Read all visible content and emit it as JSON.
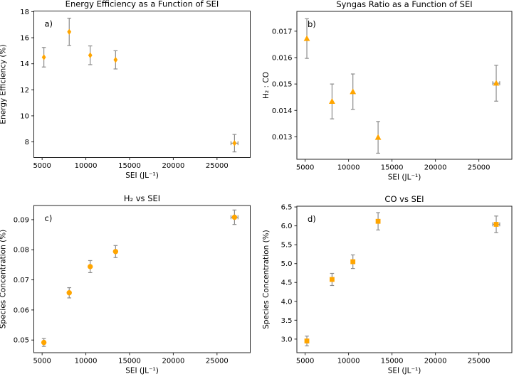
{
  "style": {
    "background": "#ffffff",
    "marker_color": "#FFA500",
    "error_bar_color": "#8c8c8c",
    "axis_color": "#262626",
    "text_color": "#000000"
  },
  "chart_data": [
    {
      "id": "a",
      "type": "scatter",
      "title": "Energy Efficiency as a Function of SEI",
      "annotation": "a)",
      "xlabel": "SEI (JL⁻¹)",
      "ylabel": "Energy Efficiency (%)",
      "marker": "diamond",
      "grid": false,
      "legend": "none",
      "xlim": [
        4050,
        28800
      ],
      "ylim": [
        6.8,
        18.05
      ],
      "xticks": [
        {
          "v": 5000,
          "label": "5000"
        },
        {
          "v": 10000,
          "label": "10000"
        },
        {
          "v": 15000,
          "label": "15000"
        },
        {
          "v": 20000,
          "label": "20000"
        },
        {
          "v": 25000,
          "label": "25000"
        }
      ],
      "yticks": [
        {
          "v": 8,
          "label": "8"
        },
        {
          "v": 10,
          "label": "10"
        },
        {
          "v": 12,
          "label": "12"
        },
        {
          "v": 14,
          "label": "14"
        },
        {
          "v": 16,
          "label": "16"
        },
        {
          "v": 18,
          "label": "18"
        }
      ],
      "points": [
        {
          "x": 5200,
          "y": 14.5,
          "yerr": 0.75,
          "xerr": 0
        },
        {
          "x": 8100,
          "y": 16.45,
          "yerr": 1.05,
          "xerr": 0
        },
        {
          "x": 10500,
          "y": 14.65,
          "yerr": 0.72,
          "xerr": 0
        },
        {
          "x": 13400,
          "y": 14.3,
          "yerr": 0.7,
          "xerr": 0
        },
        {
          "x": 27000,
          "y": 7.9,
          "yerr": 0.67,
          "xerr": 400
        }
      ]
    },
    {
      "id": "b",
      "type": "scatter",
      "title": "Syngas Ratio as a Function of SEI",
      "annotation": "b)",
      "xlabel": "SEI (JL⁻¹)",
      "ylabel": "H₂ : CO",
      "marker": "triangle-up",
      "grid": false,
      "legend": "none",
      "xlim": [
        4050,
        28800
      ],
      "ylim": [
        0.01215,
        0.01775
      ],
      "xticks": [
        {
          "v": 5000,
          "label": "5000"
        },
        {
          "v": 10000,
          "label": "10000"
        },
        {
          "v": 15000,
          "label": "15000"
        },
        {
          "v": 20000,
          "label": "20000"
        },
        {
          "v": 25000,
          "label": "25000"
        }
      ],
      "yticks": [
        {
          "v": 0.013,
          "label": "0.013"
        },
        {
          "v": 0.014,
          "label": "0.014"
        },
        {
          "v": 0.015,
          "label": "0.015"
        },
        {
          "v": 0.016,
          "label": "0.016"
        },
        {
          "v": 0.017,
          "label": "0.017"
        }
      ],
      "points": [
        {
          "x": 5200,
          "y": 0.01672,
          "yerr": 0.00075,
          "xerr": 0
        },
        {
          "x": 8100,
          "y": 0.01434,
          "yerr": 0.00066,
          "xerr": 0
        },
        {
          "x": 10500,
          "y": 0.01471,
          "yerr": 0.00067,
          "xerr": 0
        },
        {
          "x": 13400,
          "y": 0.01298,
          "yerr": 0.0006,
          "xerr": 0
        },
        {
          "x": 27000,
          "y": 0.01503,
          "yerr": 0.00068,
          "xerr": 400
        }
      ]
    },
    {
      "id": "c",
      "type": "scatter",
      "title": "H₂ vs SEI",
      "annotation": "c)",
      "xlabel": "SEI (JL⁻¹)",
      "ylabel": "Species Concentration (%)",
      "marker": "circle",
      "grid": false,
      "legend": "none",
      "xlim": [
        4050,
        28800
      ],
      "ylim": [
        0.0458,
        0.0947
      ],
      "xticks": [
        {
          "v": 5000,
          "label": "5000"
        },
        {
          "v": 10000,
          "label": "10000"
        },
        {
          "v": 15000,
          "label": "15000"
        },
        {
          "v": 20000,
          "label": "20000"
        },
        {
          "v": 25000,
          "label": "25000"
        }
      ],
      "yticks": [
        {
          "v": 0.05,
          "label": "0.05"
        },
        {
          "v": 0.06,
          "label": "0.06"
        },
        {
          "v": 0.07,
          "label": "0.07"
        },
        {
          "v": 0.08,
          "label": "0.08"
        },
        {
          "v": 0.09,
          "label": "0.09"
        }
      ],
      "points": [
        {
          "x": 5200,
          "y": 0.0492,
          "yerr": 0.0013,
          "xerr": 0
        },
        {
          "x": 8100,
          "y": 0.0657,
          "yerr": 0.0017,
          "xerr": 0
        },
        {
          "x": 10500,
          "y": 0.0744,
          "yerr": 0.002,
          "xerr": 0
        },
        {
          "x": 13400,
          "y": 0.0794,
          "yerr": 0.002,
          "xerr": 0
        },
        {
          "x": 27000,
          "y": 0.0908,
          "yerr": 0.0024,
          "xerr": 400
        }
      ]
    },
    {
      "id": "d",
      "type": "scatter",
      "title": "CO vs SEI",
      "annotation": "d)",
      "xlabel": "SEI (JL⁻¹)",
      "ylabel": "Species Concentration (%)",
      "marker": "square",
      "grid": false,
      "legend": "none",
      "xlim": [
        4050,
        28800
      ],
      "ylim": [
        2.64,
        6.52
      ],
      "xticks": [
        {
          "v": 5000,
          "label": "5000"
        },
        {
          "v": 10000,
          "label": "10000"
        },
        {
          "v": 15000,
          "label": "15000"
        },
        {
          "v": 20000,
          "label": "20000"
        },
        {
          "v": 25000,
          "label": "25000"
        }
      ],
      "yticks": [
        {
          "v": 3.0,
          "label": "3.0"
        },
        {
          "v": 3.5,
          "label": "3.5"
        },
        {
          "v": 4.0,
          "label": "4.0"
        },
        {
          "v": 4.5,
          "label": "4.5"
        },
        {
          "v": 5.0,
          "label": "5.0"
        },
        {
          "v": 5.5,
          "label": "5.5"
        },
        {
          "v": 6.0,
          "label": "6.0"
        },
        {
          "v": 6.5,
          "label": "6.5"
        }
      ],
      "points": [
        {
          "x": 5200,
          "y": 2.95,
          "yerr": 0.13,
          "xerr": 0
        },
        {
          "x": 8100,
          "y": 4.58,
          "yerr": 0.16,
          "xerr": 0
        },
        {
          "x": 10500,
          "y": 5.05,
          "yerr": 0.18,
          "xerr": 0
        },
        {
          "x": 13400,
          "y": 6.12,
          "yerr": 0.23,
          "xerr": 0
        },
        {
          "x": 27000,
          "y": 6.04,
          "yerr": 0.22,
          "xerr": 400
        }
      ]
    }
  ]
}
